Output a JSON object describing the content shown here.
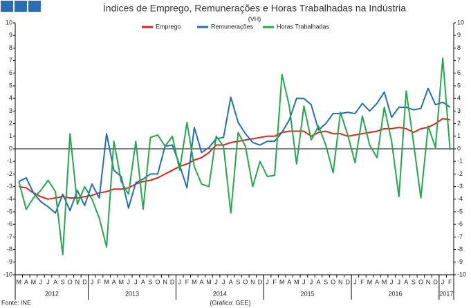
{
  "chart_data": {
    "type": "line",
    "title": "Índices de Emprego, Remunerações e Horas Trabalhadas na Indústria",
    "subtitle": "(VH)",
    "source": "Fonte: INE",
    "credit": "(Gráfico: GEE)",
    "legend": "top",
    "categories": [
      "M",
      "A",
      "M",
      "J",
      "J",
      "A",
      "S",
      "O",
      "N",
      "D",
      "J",
      "F",
      "M",
      "A",
      "M",
      "J",
      "J",
      "A",
      "S",
      "O",
      "N",
      "D",
      "J",
      "F",
      "M",
      "A",
      "M",
      "J",
      "J",
      "A",
      "S",
      "O",
      "N",
      "D",
      "J",
      "F",
      "M",
      "A",
      "M",
      "J",
      "J",
      "A",
      "S",
      "O",
      "N",
      "D",
      "J",
      "F",
      "M",
      "A",
      "M",
      "J",
      "J",
      "A",
      "S",
      "O",
      "N",
      "D",
      "J",
      "F"
    ],
    "year_labels": [
      "2012",
      "2013",
      "2014",
      "2015",
      "2016",
      "2017"
    ],
    "ylim": [
      -10,
      10
    ],
    "yticks": [
      -10,
      -9,
      -8,
      -7,
      -6,
      -5,
      -4,
      -3,
      -2,
      -1,
      0,
      1,
      2,
      3,
      4,
      5,
      6,
      7,
      8,
      9,
      10
    ],
    "y2lim": [
      -10,
      10
    ],
    "y2ticks": [
      -10,
      -9,
      -8,
      -7,
      -6,
      -5,
      -4,
      -3,
      -2,
      -1,
      0,
      1,
      2,
      3,
      4,
      5,
      6,
      7,
      8,
      9,
      10
    ],
    "series": [
      {
        "name": "Emprego",
        "color": "#e3201f",
        "values": [
          -3.0,
          -3.1,
          -3.5,
          -3.8,
          -4.0,
          -3.9,
          -3.8,
          -3.9,
          -3.9,
          -3.8,
          -3.7,
          -3.5,
          -3.4,
          -3.2,
          -3.2,
          -3.1,
          -2.8,
          -2.6,
          -2.5,
          -2.3,
          -2.0,
          -1.7,
          -1.4,
          -1.2,
          -0.9,
          -0.7,
          -0.3,
          0.3,
          0.3,
          0.5,
          0.6,
          0.7,
          0.8,
          0.9,
          1.0,
          1.0,
          1.3,
          1.4,
          1.4,
          1.4,
          1.0,
          1.3,
          1.4,
          1.2,
          1.2,
          1.0,
          1.1,
          1.2,
          1.3,
          1.4,
          1.6,
          1.6,
          1.7,
          1.6,
          1.3,
          1.6,
          1.7,
          2.0,
          2.4,
          2.3
        ]
      },
      {
        "name": "Remunerações",
        "color": "#1f6fb4",
        "values": [
          -2.6,
          -2.3,
          -3.5,
          -4.2,
          -4.6,
          -5.1,
          -3.6,
          -4.9,
          -3.3,
          -4.5,
          -2.8,
          -3.9,
          1.2,
          -1.7,
          -2.2,
          -4.7,
          -2.7,
          -2.4,
          -2.0,
          -2.0,
          0.2,
          0.3,
          -1.3,
          -3.1,
          1.7,
          -0.3,
          0.1,
          0.8,
          0.9,
          4.1,
          2.1,
          1.2,
          0.5,
          0.3,
          0.6,
          0.6,
          1.3,
          2.3,
          4.0,
          4.0,
          3.5,
          1.5,
          2.0,
          2.8,
          2.8,
          2.9,
          2.8,
          3.6,
          3.0,
          3.6,
          4.5,
          2.5,
          3.3,
          3.3,
          3.1,
          3.2,
          4.8,
          3.5,
          3.7,
          3.3
        ]
      },
      {
        "name": "Horas Trabalhadas",
        "color": "#22a84a",
        "values": [
          -2.6,
          -4.8,
          -3.9,
          -3.3,
          -2.5,
          -3.4,
          -8.4,
          1.2,
          -4.4,
          -3.0,
          -4.0,
          -5.5,
          -7.8,
          0.6,
          -2.6,
          -3.6,
          0.6,
          -4.8,
          0.9,
          1.1,
          0.2,
          1.0,
          -1.7,
          2.1,
          -1.4,
          -2.8,
          -3.0,
          1.0,
          0.2,
          -5.1,
          1.3,
          0.2,
          -3.0,
          -1.0,
          -2.2,
          -2.1,
          5.9,
          3.4,
          -1.2,
          3.4,
          0.7,
          1.8,
          0.3,
          -1.9,
          2.9,
          1.1,
          -1.1,
          2.6,
          0.3,
          -0.7,
          3.3,
          0.6,
          -3.8,
          4.6,
          0.5,
          -3.9,
          1.8,
          0.1,
          7.2,
          -0.1
        ]
      }
    ]
  }
}
